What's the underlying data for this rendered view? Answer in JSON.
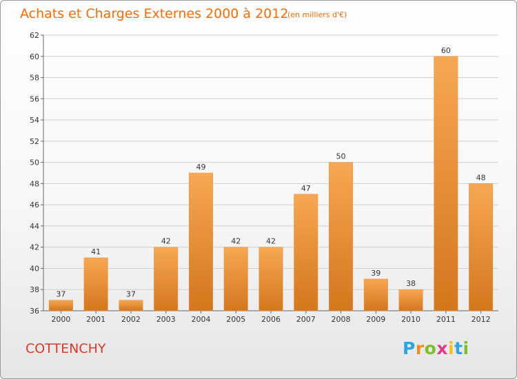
{
  "header": {
    "title": "Achats et Charges Externes 2000 à 2012",
    "subtitle": "(en milliers d'€)"
  },
  "footer": {
    "commune": "COTTENCHY",
    "brand_letters": [
      "P",
      "r",
      "o",
      "x",
      "i",
      "t",
      "i"
    ],
    "brand_colors": [
      "#2aa7df",
      "#f28c1e",
      "#7bbf2a",
      "#e23b8a",
      "#f2c01e",
      "#2aa7df",
      "#7bbf2a"
    ]
  },
  "colors": {
    "bar_top": "#f7a852",
    "bar_bottom": "#d4761c",
    "title": "#ff6a00",
    "commune": "#d93a2a",
    "grid": "#d0d0d0"
  },
  "chart_data": {
    "type": "bar",
    "title": "Achats et Charges Externes 2000 à 2012",
    "subtitle": "(en milliers d'€)",
    "categories": [
      "2000",
      "2001",
      "2002",
      "2003",
      "2004",
      "2005",
      "2006",
      "2007",
      "2008",
      "2009",
      "2010",
      "2011",
      "2012"
    ],
    "values": [
      37,
      41,
      37,
      42,
      49,
      42,
      42,
      47,
      50,
      39,
      38,
      60,
      48
    ],
    "ylim": [
      36,
      62
    ],
    "yticks": [
      36,
      38,
      40,
      42,
      44,
      46,
      48,
      50,
      52,
      54,
      56,
      58,
      60,
      62
    ],
    "grid": true,
    "data_labels": true
  }
}
